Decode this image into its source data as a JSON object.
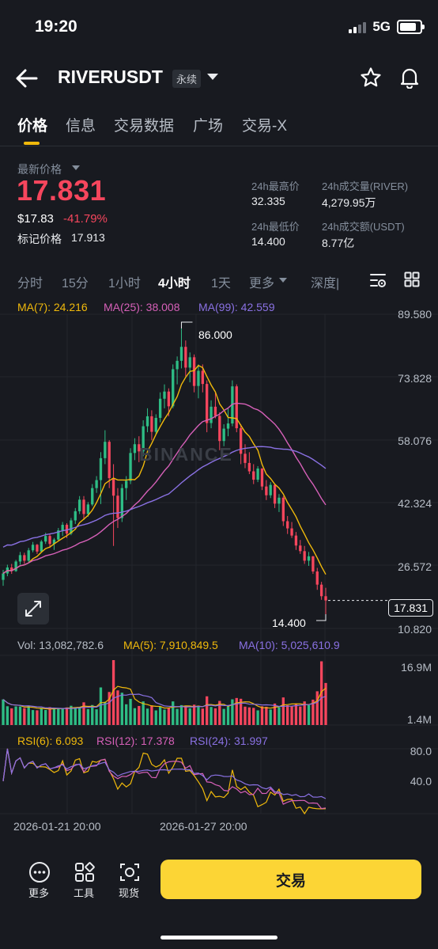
{
  "status_bar": {
    "time": "19:20",
    "network": "5G"
  },
  "header": {
    "symbol": "RIVERUSDT",
    "badge": "永续"
  },
  "tabs": [
    {
      "label": "价格",
      "active": true
    },
    {
      "label": "信息"
    },
    {
      "label": "交易数据"
    },
    {
      "label": "广场"
    },
    {
      "label": "交易-X"
    }
  ],
  "price": {
    "last_price_label": "最新价格",
    "last_price": "17.831",
    "usd_price": "$17.83",
    "change_pct": "-41.79%",
    "mark_label": "标记价格",
    "mark_price": "17.913"
  },
  "stats": {
    "high_label": "24h最高价",
    "high": "32.335",
    "volume_label": "24h成交量(RIVER)",
    "volume": "4,279.95万",
    "low_label": "24h最低价",
    "low": "14.400",
    "turnover_label": "24h成交额(USDT)",
    "turnover": "8.77亿"
  },
  "intervals": [
    "分时",
    "15分",
    "1小时",
    "4小时",
    "1天",
    "更多",
    "深度|"
  ],
  "active_interval": "4小时",
  "ma_legend": {
    "ma7": "MA(7): 24.216",
    "ma25": "MA(25): 38.008",
    "ma99": "MA(99): 42.559"
  },
  "vol_legend": {
    "vol": "Vol: 13,082,782.6",
    "ma5": "MA(5): 7,910,849.5",
    "ma10": "MA(10): 5,025,610.9"
  },
  "rsi_legend": {
    "rsi6": "RSI(6): 6.093",
    "rsi12": "RSI(12): 17.378",
    "rsi24": "RSI(24): 31.997"
  },
  "price_axis": [
    "89.580",
    "73.828",
    "58.076",
    "42.324",
    "26.572",
    "10.820"
  ],
  "vol_axis": [
    "16.9M",
    "1.4M"
  ],
  "rsi_axis": [
    "80.0",
    "40.0"
  ],
  "time_axis": [
    "2026-01-21 20:00",
    "2026-01-27 20:00"
  ],
  "annotations": {
    "high": "86.000",
    "low": "14.400",
    "current": "17.831"
  },
  "watermark": "BINANCE",
  "bottom": {
    "more_label": "更多",
    "tools_label": "工具",
    "spot_label": "现货",
    "trade_label": "交易"
  },
  "colors": {
    "up": "#2ebd85",
    "down": "#f6465d",
    "accent": "#fcd535",
    "ma7": "#f0b90b",
    "ma25": "#d660b8",
    "ma99": "#8a71e3"
  },
  "chart_data": {
    "type": "candlestick",
    "x_range": [
      "2026-01-17",
      "2026-02-01"
    ],
    "price_range": [
      10.82,
      89.58
    ],
    "candles_ohlc": [
      [
        23.0,
        25.5,
        21.5,
        24.6
      ],
      [
        24.6,
        26.8,
        23.9,
        26.1
      ],
      [
        26.1,
        27.0,
        24.5,
        25.2
      ],
      [
        25.2,
        28.0,
        25.0,
        27.6
      ],
      [
        27.6,
        30.0,
        26.8,
        29.2
      ],
      [
        29.2,
        29.8,
        27.0,
        27.8
      ],
      [
        27.8,
        31.0,
        27.5,
        30.4
      ],
      [
        30.4,
        32.5,
        29.9,
        31.8
      ],
      [
        31.8,
        32.0,
        29.5,
        30.1
      ],
      [
        30.1,
        33.0,
        29.8,
        32.6
      ],
      [
        32.6,
        34.8,
        32.0,
        34.0
      ],
      [
        34.0,
        34.5,
        31.0,
        32.0
      ],
      [
        32.0,
        33.5,
        30.5,
        33.1
      ],
      [
        33.1,
        36.0,
        32.8,
        35.4
      ],
      [
        35.4,
        37.5,
        34.0,
        36.8
      ],
      [
        36.8,
        37.2,
        33.5,
        34.6
      ],
      [
        34.6,
        38.5,
        34.2,
        37.9
      ],
      [
        37.9,
        41.0,
        37.0,
        40.2
      ],
      [
        40.2,
        44.0,
        39.5,
        43.1
      ],
      [
        43.1,
        44.0,
        38.0,
        39.5
      ],
      [
        39.5,
        42.5,
        38.8,
        41.9
      ],
      [
        41.9,
        47.0,
        41.5,
        46.0
      ],
      [
        46.0,
        49.0,
        44.8,
        48.0
      ],
      [
        48.0,
        55.0,
        42.0,
        53.5
      ],
      [
        53.5,
        60.5,
        52.0,
        57.6
      ],
      [
        57.6,
        58.0,
        46.0,
        48.5
      ],
      [
        48.5,
        52.0,
        31.5,
        44.1
      ],
      [
        44.1,
        46.0,
        36.0,
        38.5
      ],
      [
        38.5,
        47.0,
        37.5,
        46.0
      ],
      [
        46.0,
        49.0,
        43.0,
        47.8
      ],
      [
        47.8,
        56.0,
        47.0,
        54.8
      ],
      [
        54.8,
        58.5,
        53.0,
        57.0
      ],
      [
        57.0,
        59.0,
        52.5,
        55.2
      ],
      [
        55.2,
        63.0,
        54.0,
        61.5
      ],
      [
        61.5,
        66.0,
        60.0,
        64.0
      ],
      [
        64.0,
        65.5,
        58.0,
        60.1
      ],
      [
        60.1,
        64.5,
        59.5,
        63.6
      ],
      [
        63.6,
        70.0,
        62.5,
        68.4
      ],
      [
        68.4,
        72.0,
        66.0,
        70.2
      ],
      [
        70.2,
        71.0,
        64.0,
        66.5
      ],
      [
        66.5,
        77.0,
        66.0,
        75.8
      ],
      [
        75.8,
        79.0,
        72.0,
        77.9
      ],
      [
        77.9,
        86.0,
        76.0,
        81.4
      ],
      [
        81.4,
        83.0,
        74.0,
        76.2
      ],
      [
        76.2,
        80.0,
        72.5,
        78.8
      ],
      [
        78.8,
        79.5,
        70.0,
        71.6
      ],
      [
        71.6,
        77.0,
        68.5,
        75.4
      ],
      [
        75.4,
        77.0,
        70.0,
        72.1
      ],
      [
        72.1,
        73.0,
        60.0,
        62.3
      ],
      [
        62.3,
        68.0,
        61.0,
        66.4
      ],
      [
        66.4,
        70.0,
        63.5,
        64.1
      ],
      [
        64.1,
        65.0,
        55.5,
        57.8
      ],
      [
        57.8,
        62.0,
        56.5,
        60.9
      ],
      [
        60.9,
        66.0,
        59.0,
        62.2
      ],
      [
        62.2,
        73.0,
        61.5,
        71.5
      ],
      [
        71.5,
        72.0,
        60.0,
        61.0
      ],
      [
        61.0,
        62.0,
        52.0,
        54.6
      ],
      [
        54.6,
        57.0,
        51.0,
        52.3
      ],
      [
        52.3,
        55.0,
        49.5,
        50.2
      ],
      [
        50.2,
        52.0,
        47.0,
        48.1
      ],
      [
        48.1,
        51.5,
        47.5,
        50.9
      ],
      [
        50.9,
        51.0,
        45.5,
        46.4
      ],
      [
        46.4,
        48.0,
        43.0,
        44.2
      ],
      [
        44.2,
        47.5,
        43.5,
        46.8
      ],
      [
        46.8,
        47.0,
        41.0,
        42.1
      ],
      [
        42.1,
        44.5,
        40.0,
        43.6
      ],
      [
        43.6,
        44.0,
        36.5,
        37.7
      ],
      [
        37.7,
        39.0,
        34.5,
        35.9
      ],
      [
        35.9,
        37.5,
        33.5,
        34.1
      ],
      [
        34.1,
        35.0,
        30.5,
        31.6
      ],
      [
        31.6,
        33.0,
        29.5,
        30.2
      ],
      [
        30.2,
        31.5,
        27.0,
        27.8
      ],
      [
        27.8,
        30.0,
        26.5,
        28.9
      ],
      [
        28.9,
        29.0,
        24.5,
        25.1
      ],
      [
        25.1,
        26.0,
        20.5,
        21.8
      ],
      [
        21.8,
        22.5,
        18.0,
        18.9
      ],
      [
        18.9,
        21.0,
        14.4,
        17.831
      ]
    ],
    "volume_range": [
      1.4,
      16.9
    ],
    "rsi_range": [
      0,
      100
    ]
  }
}
